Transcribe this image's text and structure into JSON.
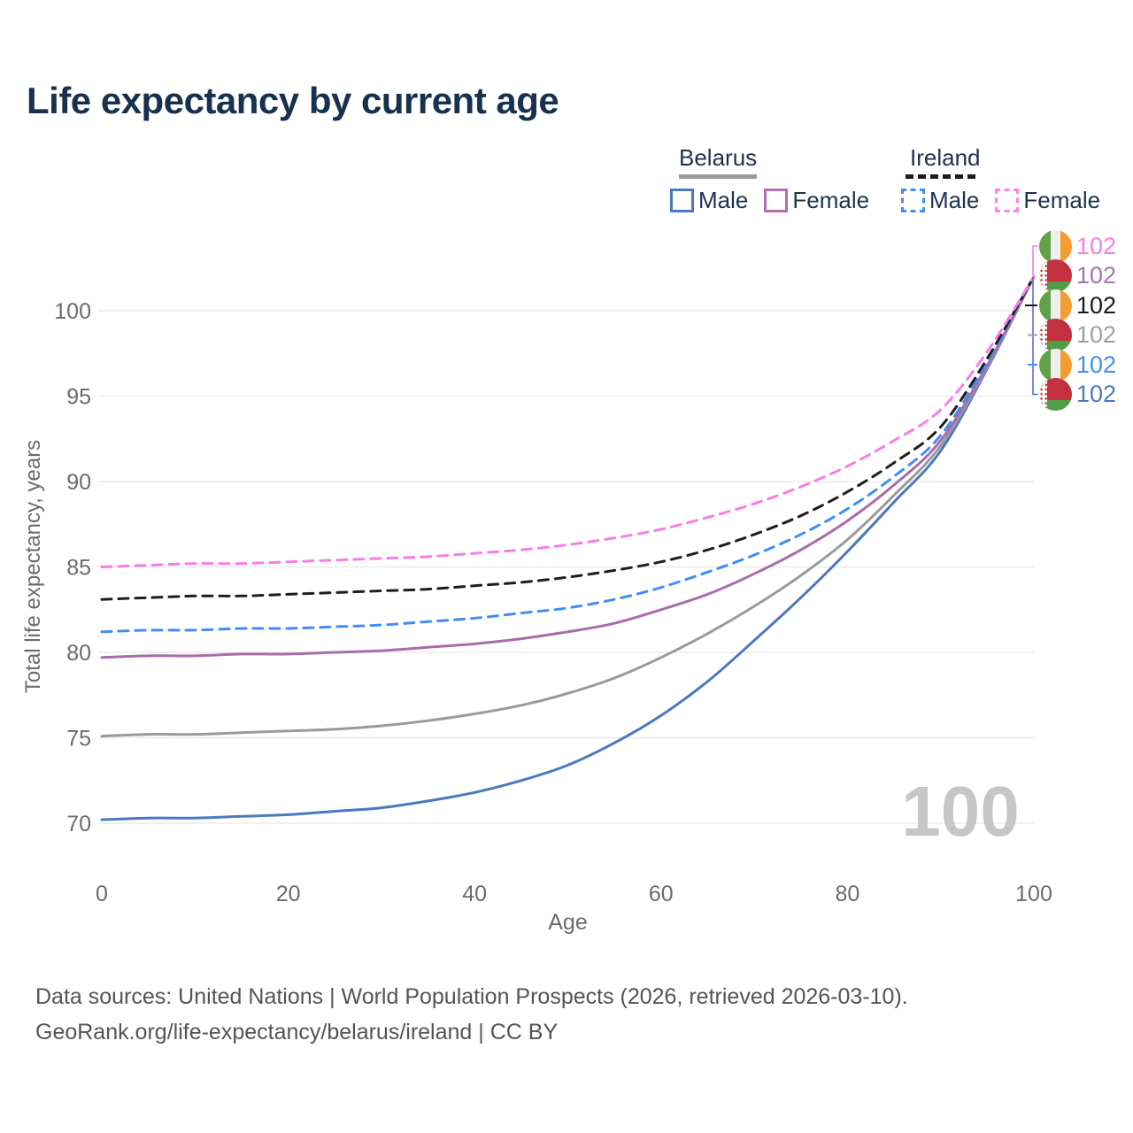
{
  "title": "Life expectancy by current age",
  "legend": {
    "groups": [
      {
        "country": "Belarus",
        "line_style": "solid",
        "underline_color": "#9b9b9b",
        "items": [
          {
            "label": "Male",
            "color": "#4a79c1"
          },
          {
            "label": "Female",
            "color": "#b36fb2"
          }
        ]
      },
      {
        "country": "Ireland",
        "line_style": "dashed",
        "underline_color": "#1c1c1c",
        "items": [
          {
            "label": "Male",
            "color": "#3f8ef5"
          },
          {
            "label": "Female",
            "color": "#fb82e9"
          }
        ]
      }
    ]
  },
  "chart_data": {
    "type": "line",
    "title": "Life expectancy by current age",
    "xlabel": "Age",
    "ylabel": "Total life expectancy, years",
    "xticks": [
      0,
      20,
      40,
      60,
      80,
      100
    ],
    "yticks": [
      70,
      75,
      80,
      85,
      90,
      95,
      100
    ],
    "xlim": [
      0,
      100
    ],
    "ylim": [
      68.5,
      103
    ],
    "grid": "horizontal",
    "age_watermark": "100",
    "x": [
      0,
      5,
      10,
      15,
      20,
      25,
      30,
      35,
      40,
      45,
      50,
      55,
      60,
      65,
      70,
      75,
      80,
      85,
      90,
      95,
      100
    ],
    "series": [
      {
        "name": "Belarus Male",
        "country": "Belarus",
        "sex": "male",
        "style": "solid",
        "color": "#4a79c1",
        "values": [
          70.2,
          70.3,
          70.3,
          70.4,
          70.5,
          70.7,
          70.9,
          71.3,
          71.8,
          72.5,
          73.4,
          74.7,
          76.3,
          78.3,
          80.7,
          83.2,
          85.9,
          88.8,
          91.8,
          96.6,
          102
        ]
      },
      {
        "name": "Belarus Total",
        "country": "Belarus",
        "sex": "total",
        "style": "solid",
        "color": "#9a9a9a",
        "values": [
          75.1,
          75.2,
          75.2,
          75.3,
          75.4,
          75.5,
          75.7,
          76.0,
          76.4,
          76.9,
          77.6,
          78.5,
          79.7,
          81.1,
          82.7,
          84.5,
          86.6,
          89.2,
          92.1,
          96.7,
          102
        ]
      },
      {
        "name": "Belarus Female",
        "country": "Belarus",
        "sex": "female",
        "style": "solid",
        "color": "#aa6bab",
        "values": [
          79.7,
          79.8,
          79.8,
          79.9,
          79.9,
          80.0,
          80.1,
          80.3,
          80.5,
          80.8,
          81.2,
          81.7,
          82.5,
          83.4,
          84.6,
          86.0,
          87.7,
          89.8,
          92.4,
          96.8,
          102
        ]
      },
      {
        "name": "Ireland Male",
        "country": "Ireland",
        "sex": "male",
        "style": "dashed",
        "color": "#3f8ef5",
        "values": [
          81.2,
          81.3,
          81.3,
          81.4,
          81.4,
          81.5,
          81.6,
          81.8,
          82.0,
          82.3,
          82.6,
          83.1,
          83.8,
          84.7,
          85.7,
          86.9,
          88.4,
          90.3,
          92.7,
          97.0,
          102
        ]
      },
      {
        "name": "Ireland Total",
        "country": "Ireland",
        "sex": "total",
        "style": "dashed",
        "color": "#1e1e1e",
        "values": [
          83.1,
          83.2,
          83.3,
          83.3,
          83.4,
          83.5,
          83.6,
          83.7,
          83.9,
          84.1,
          84.4,
          84.8,
          85.3,
          86.0,
          86.9,
          88.0,
          89.4,
          91.1,
          93.2,
          97.2,
          102
        ]
      },
      {
        "name": "Ireland Female",
        "country": "Ireland",
        "sex": "female",
        "style": "dashed",
        "color": "#f97ce6",
        "values": [
          85.0,
          85.1,
          85.2,
          85.2,
          85.3,
          85.4,
          85.5,
          85.6,
          85.8,
          86.0,
          86.3,
          86.7,
          87.2,
          87.9,
          88.7,
          89.7,
          90.9,
          92.4,
          94.2,
          97.6,
          102
        ]
      }
    ],
    "end_labels": [
      {
        "flag": "ireland",
        "series": "Ireland Female",
        "value": "102",
        "color": "#f97ce6"
      },
      {
        "flag": "belarus",
        "series": "Belarus Female",
        "value": "102",
        "color": "#a873ae"
      },
      {
        "flag": "ireland",
        "series": "Ireland Total",
        "value": "102",
        "color": "#1a1a1a"
      },
      {
        "flag": "belarus",
        "series": "Belarus Total",
        "value": "102",
        "color": "#a0a0a0"
      },
      {
        "flag": "ireland",
        "series": "Ireland Male",
        "value": "102",
        "color": "#3f8ef5"
      },
      {
        "flag": "belarus",
        "series": "Belarus Male",
        "value": "102",
        "color": "#4a79c1"
      }
    ]
  },
  "footer": {
    "line1": "Data sources: United Nations | World Population Prospects (2026, retrieved 2026-03-10).",
    "line2": "GeoRank.org/life-expectancy/belarus/ireland | CC BY"
  }
}
